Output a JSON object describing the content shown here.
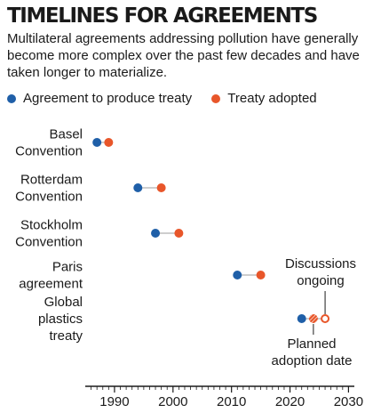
{
  "title": "TIMELINES FOR AGREEMENTS",
  "subtitle": "Multilateral agreements addressing pollution have generally become more complex over the past few decades and have taken longer to materialize.",
  "chart_data": {
    "type": "dot-range",
    "xlim": [
      1985,
      2031
    ],
    "xticks": [
      1990,
      2000,
      2010,
      2020,
      2030
    ],
    "legend": [
      {
        "label": "Agreement to produce treaty",
        "color": "#1f5fa8"
      },
      {
        "label": "Treaty adopted",
        "color": "#e8562a"
      }
    ],
    "categories": [
      {
        "lines": [
          "Basel",
          "Convention"
        ],
        "start": 1987,
        "end": 1989
      },
      {
        "lines": [
          "Rotterdam",
          "Convention"
        ],
        "start": 1994,
        "end": 1998
      },
      {
        "lines": [
          "Stockholm",
          "Convention"
        ],
        "start": 1997,
        "end": 2001
      },
      {
        "lines": [
          "Paris",
          "agreement"
        ],
        "start": 2011,
        "end": 2015
      },
      {
        "lines": [
          "Global",
          "plastics",
          "treaty"
        ],
        "start": 2022,
        "end": 2024,
        "extended_end": 2026
      }
    ],
    "annotations": [
      {
        "lines": [
          "Discussions",
          "ongoing"
        ],
        "x": 2026
      },
      {
        "lines": [
          "Planned",
          "adoption date"
        ],
        "x": 2024
      }
    ]
  }
}
